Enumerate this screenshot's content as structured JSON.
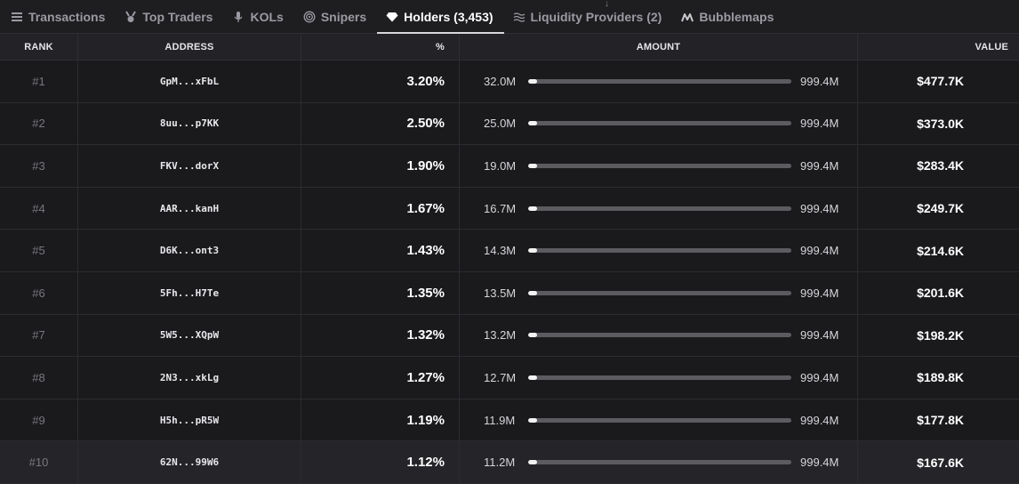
{
  "tabs": [
    {
      "label": "Transactions",
      "icon": "list-icon",
      "active": false
    },
    {
      "label": "Top Traders",
      "icon": "medal-icon",
      "active": false
    },
    {
      "label": "KOLs",
      "icon": "microphone-icon",
      "active": false
    },
    {
      "label": "Snipers",
      "icon": "target-icon",
      "active": false
    },
    {
      "label": "Holders (3,453)",
      "icon": "diamond-icon",
      "active": true
    },
    {
      "label": "Liquidity Providers (2)",
      "icon": "liquidity-icon",
      "active": false
    },
    {
      "label": "Bubblemaps",
      "icon": "bubblemaps-icon",
      "active": false
    }
  ],
  "columns": {
    "rank": "RANK",
    "address": "ADDRESS",
    "percent": "%",
    "amount": "AMOUNT",
    "value": "VALUE"
  },
  "rows": [
    {
      "rank": "#1",
      "address": "GpM...xFbL",
      "percent": "3.20%",
      "amount": "32.0M",
      "total": "999.4M",
      "share": 0.032,
      "value": "$477.7K"
    },
    {
      "rank": "#2",
      "address": "8uu...p7KK",
      "percent": "2.50%",
      "amount": "25.0M",
      "total": "999.4M",
      "share": 0.025,
      "value": "$373.0K"
    },
    {
      "rank": "#3",
      "address": "FKV...dorX",
      "percent": "1.90%",
      "amount": "19.0M",
      "total": "999.4M",
      "share": 0.019,
      "value": "$283.4K"
    },
    {
      "rank": "#4",
      "address": "AAR...kanH",
      "percent": "1.67%",
      "amount": "16.7M",
      "total": "999.4M",
      "share": 0.0167,
      "value": "$249.7K"
    },
    {
      "rank": "#5",
      "address": "D6K...ont3",
      "percent": "1.43%",
      "amount": "14.3M",
      "total": "999.4M",
      "share": 0.0143,
      "value": "$214.6K"
    },
    {
      "rank": "#6",
      "address": "5Fh...H7Te",
      "percent": "1.35%",
      "amount": "13.5M",
      "total": "999.4M",
      "share": 0.0135,
      "value": "$201.6K"
    },
    {
      "rank": "#7",
      "address": "5W5...XQpW",
      "percent": "1.32%",
      "amount": "13.2M",
      "total": "999.4M",
      "share": 0.0132,
      "value": "$198.2K"
    },
    {
      "rank": "#8",
      "address": "2N3...xkLg",
      "percent": "1.27%",
      "amount": "12.7M",
      "total": "999.4M",
      "share": 0.0127,
      "value": "$189.8K"
    },
    {
      "rank": "#9",
      "address": "H5h...pR5W",
      "percent": "1.19%",
      "amount": "11.9M",
      "total": "999.4M",
      "share": 0.0119,
      "value": "$177.8K"
    },
    {
      "rank": "#10",
      "address": "62N...99W6",
      "percent": "1.12%",
      "amount": "11.2M",
      "total": "999.4M",
      "share": 0.0112,
      "value": "$167.6K"
    }
  ]
}
